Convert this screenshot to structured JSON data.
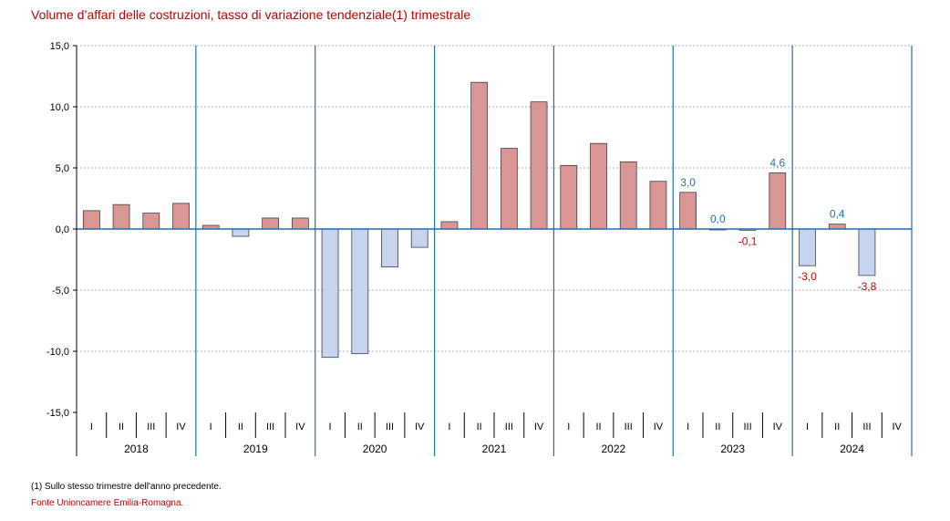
{
  "title": "Volume d’affari delle costruzioni, tasso di variazione tendenziale(1) trimestrale",
  "footnote": "(1) Sullo stesso trimestre dell'anno precedente.",
  "source": "Fonte Unioncamere Emilia-Romagna.",
  "colors": {
    "positive_fill": "#d99694",
    "negative_fill": "#c6d4f0",
    "bar_stroke": "#404040",
    "year_divider": "#1f6fb5",
    "positive_label": "#1f6fb5",
    "negative_label": "#e00000",
    "title": "#c00000"
  },
  "chart_data": {
    "type": "bar",
    "title": "Volume d’affari delle costruzioni, tasso di variazione tendenziale(1) trimestrale",
    "xlabel": "",
    "ylabel": "",
    "ylim": [
      -15,
      15
    ],
    "yticks": [
      "15,0",
      "10,0",
      "5,0",
      "0,0",
      "-5,0",
      "-10,0",
      "-15,0"
    ],
    "ytick_values": [
      15,
      10,
      5,
      0,
      -5,
      -10,
      -15
    ],
    "grid": true,
    "quarters": [
      "I",
      "II",
      "III",
      "IV"
    ],
    "years": [
      "2018",
      "2019",
      "2020",
      "2021",
      "2022",
      "2023",
      "2024"
    ],
    "values": [
      1.5,
      2.0,
      1.3,
      2.1,
      0.3,
      -0.6,
      0.9,
      0.9,
      -10.5,
      -10.2,
      -3.1,
      -1.5,
      0.6,
      12.0,
      6.6,
      10.4,
      5.2,
      7.0,
      5.5,
      3.9,
      3.0,
      0.0,
      -0.1,
      4.6,
      -3.0,
      0.4,
      -3.8,
      null
    ],
    "data_labels": [
      null,
      null,
      null,
      null,
      null,
      null,
      null,
      null,
      null,
      null,
      null,
      null,
      null,
      null,
      null,
      null,
      null,
      null,
      null,
      null,
      "3,0",
      "0,0",
      "-0,1",
      "4,6",
      "-3,0",
      "0,4",
      "-3,8",
      null
    ]
  }
}
